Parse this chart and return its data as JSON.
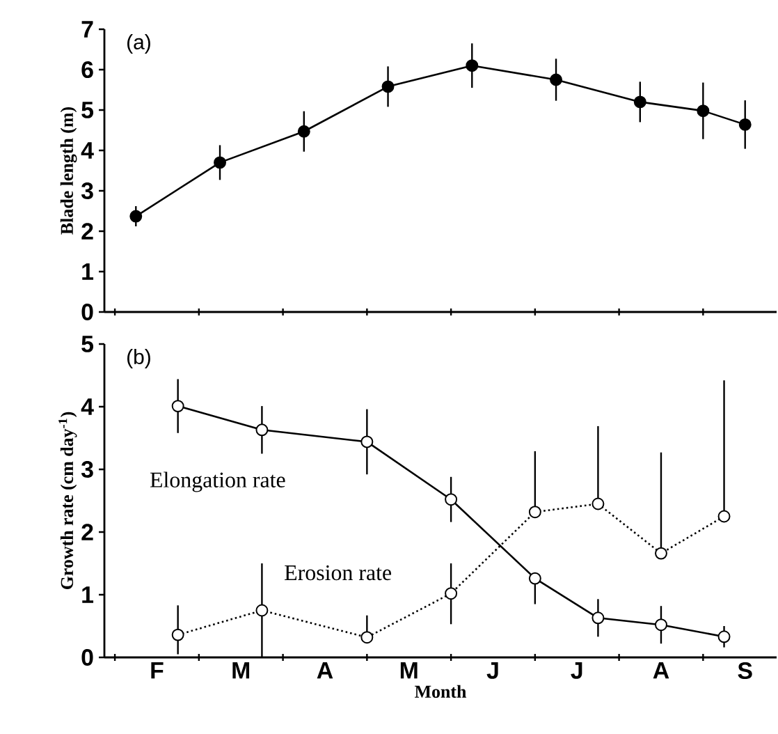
{
  "chart_data": [
    {
      "type": "line",
      "title": "(a)",
      "ylabel": "Blade length (m)",
      "categories": [
        null,
        null,
        null,
        null,
        null,
        null,
        null,
        null,
        null,
        null,
        null,
        null,
        null,
        null,
        null,
        null,
        null,
        null,
        null,
        null,
        null,
        null,
        null,
        null,
        null,
        null,
        null,
        null,
        null,
        null,
        null,
        null
      ],
      "ylim": [
        0,
        7
      ],
      "yticks": [
        0,
        1,
        2,
        3,
        4,
        5,
        6,
        7
      ],
      "tick_labels": "y",
      "marker": "circle",
      "line_style": "solid",
      "grid": false,
      "series": [
        {
          "color": "#000000",
          "values": [
            null,
            2.37,
            null,
            null,
            null,
            3.7,
            null,
            null,
            null,
            4.47,
            null,
            null,
            null,
            5.58,
            null,
            null,
            null,
            6.1,
            null,
            null,
            null,
            5.75,
            null,
            null,
            null,
            5.2,
            null,
            null,
            4.98,
            null,
            4.64,
            null
          ],
          "errors": [
            null,
            0.25,
            null,
            null,
            null,
            0.43,
            null,
            null,
            null,
            0.5,
            null,
            null,
            null,
            0.5,
            null,
            null,
            null,
            0.55,
            null,
            null,
            null,
            0.52,
            null,
            null,
            null,
            0.5,
            null,
            null,
            0.7,
            null,
            0.6,
            null
          ]
        }
      ]
    },
    {
      "type": "line",
      "title": "(b)",
      "xlabel": "Month",
      "ylabel": "Growth rate (cm day$^{-1}$)",
      "categories": [
        null,
        null,
        "F",
        null,
        null,
        null,
        "M",
        null,
        null,
        null,
        "A",
        null,
        null,
        null,
        "M",
        null,
        null,
        null,
        "J",
        null,
        null,
        null,
        "J",
        null,
        null,
        null,
        "A",
        null,
        null,
        null,
        "S",
        null
      ],
      "ylim": [
        0,
        5
      ],
      "yticks": [
        0,
        1,
        2,
        3,
        4,
        5
      ],
      "marker": "circle",
      "grid": false,
      "series": [
        {
          "name": "Elongation rate",
          "color": "#000000",
          "line_style": "solid",
          "values": [
            null,
            null,
            null,
            4.01,
            null,
            null,
            null,
            3.63,
            null,
            null,
            null,
            null,
            3.44,
            null,
            null,
            null,
            2.52,
            null,
            null,
            null,
            1.26,
            null,
            null,
            0.63,
            null,
            null,
            0.52,
            null,
            null,
            0.33,
            null,
            null
          ],
          "errors": [
            null,
            null,
            null,
            0.43,
            null,
            null,
            null,
            0.38,
            null,
            null,
            null,
            null,
            0.52,
            null,
            null,
            null,
            0.36,
            null,
            null,
            null,
            [
              0.85,
              1.26
            ],
            null,
            null,
            0.3,
            null,
            null,
            0.3,
            null,
            null,
            0.17,
            null,
            null
          ]
        },
        {
          "name": "Erosion rate",
          "color": "#000000",
          "line_style": "dotted",
          "values": [
            null,
            null,
            null,
            0.36,
            null,
            null,
            null,
            0.75,
            null,
            null,
            null,
            null,
            0.32,
            null,
            null,
            null,
            1.02,
            null,
            null,
            null,
            2.32,
            null,
            null,
            2.45,
            null,
            null,
            1.66,
            null,
            null,
            2.25,
            null,
            null
          ],
          "errors": [
            null,
            null,
            null,
            [
              0.05,
              0.83
            ],
            null,
            null,
            null,
            [
              0,
              1.5
            ],
            null,
            null,
            null,
            null,
            [
              0.32,
              0.67
            ],
            null,
            null,
            null,
            [
              0.53,
              1.5
            ],
            null,
            null,
            null,
            [
              2.32,
              3.29
            ],
            null,
            null,
            [
              2.45,
              3.69
            ],
            null,
            null,
            [
              1.66,
              3.27
            ],
            null,
            null,
            [
              2.25,
              4.42
            ],
            null,
            null
          ]
        }
      ]
    }
  ]
}
